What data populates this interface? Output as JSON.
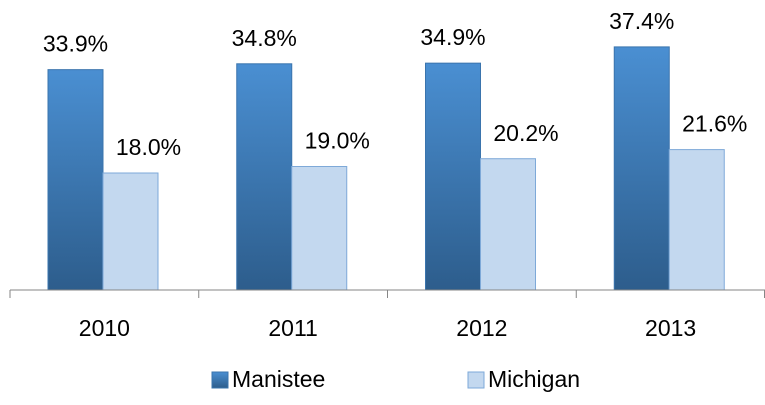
{
  "chart_data": {
    "type": "bar",
    "categories": [
      "2010",
      "2011",
      "2012",
      "2013"
    ],
    "series": [
      {
        "name": "Manistee",
        "color": "#3f7fc0",
        "values": [
          33.9,
          34.8,
          34.9,
          37.4
        ],
        "value_labels": [
          "33.9%",
          "34.8%",
          "34.9%",
          "37.4%"
        ]
      },
      {
        "name": "Michigan",
        "color": "#c3d8ef",
        "values": [
          18.0,
          19.0,
          20.2,
          21.6
        ],
        "value_labels": [
          "18.0%",
          "19.0%",
          "20.2%",
          "21.6%"
        ]
      }
    ],
    "ylim": [
      0,
      40
    ],
    "legend": "bottom"
  }
}
